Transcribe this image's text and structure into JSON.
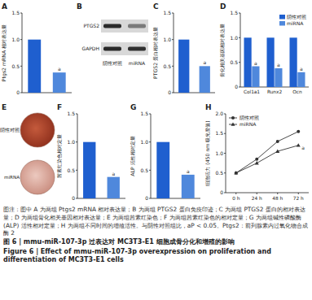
{
  "chart_data": [
    {
      "type": "bar",
      "title": "A",
      "ylabel": "Ptgs2 mRNA 相对表达量",
      "categories": [
        null,
        null
      ],
      "values": [
        1.0,
        0.38
      ],
      "colors": [
        "#1f5fcf",
        "#4f88dc"
      ],
      "significance": [
        null,
        "a"
      ],
      "ylim": [
        0,
        1.5
      ],
      "yticks": [
        0,
        0.5,
        {
          "value": 1,
          "label": "1.0"
        },
        1.5
      ],
      "tick_labels": "y"
    },
    {
      "type": "bar",
      "title": "C",
      "ylabel": "PTGS2 蛋白相对表达量",
      "categories": [
        null,
        null
      ],
      "values": [
        1.0,
        0.5
      ],
      "colors": [
        "#1f5fcf",
        "#4f88dc"
      ],
      "significance": [
        null,
        "a"
      ],
      "ylim": [
        0,
        1.5
      ],
      "yticks": [
        0,
        0.5,
        {
          "value": 1,
          "label": "1.0"
        },
        1.5
      ],
      "tick_labels": "y"
    },
    {
      "type": "bar",
      "title": "D",
      "ylabel": "骨化相关基因相对表达量",
      "categories": [
        "Col1a1",
        "Runx2",
        "Ocn"
      ],
      "series": [
        {
          "name": "阴性对照",
          "color": "#1f5fcf",
          "values": [
            1.0,
            1.0,
            1.0
          ]
        },
        {
          "name": "miRNA",
          "color": "#4f88dc",
          "values": [
            0.42,
            0.38,
            0.3
          ],
          "significance": [
            "a",
            "a",
            "a"
          ]
        }
      ],
      "legend": "upper right",
      "ylim": [
        0,
        1.5
      ],
      "yticks": [
        0,
        0.5,
        {
          "value": 1,
          "label": "1.0"
        },
        1.5
      ]
    },
    {
      "type": "bar",
      "title": "F",
      "ylabel": "茜素红染色相对定量",
      "categories": [
        null,
        null
      ],
      "values": [
        1.0,
        0.38
      ],
      "colors": [
        "#1f5fcf",
        "#4f88dc"
      ],
      "significance": [
        null,
        "a"
      ],
      "ylim": [
        0,
        1.5
      ],
      "yticks": [
        0,
        0.5,
        {
          "value": 1,
          "label": "1.0"
        },
        1.5
      ],
      "tick_labels": "y"
    },
    {
      "type": "bar",
      "title": "G",
      "ylabel": "ALP 活性相对定量",
      "categories": [
        null,
        null
      ],
      "values": [
        1.0,
        0.42
      ],
      "colors": [
        "#1f5fcf",
        "#4f88dc"
      ],
      "significance": [
        null,
        "a"
      ],
      "ylim": [
        0,
        1.5
      ],
      "yticks": [
        0,
        0.5,
        {
          "value": 1,
          "label": "1.0"
        },
        1.5
      ],
      "tick_labels": "y"
    },
    {
      "type": "line",
      "title": "H",
      "ylabel": "细胞活力 (450 nm 吸光度值)",
      "categories": [
        "0 h",
        "24 h",
        "48 h",
        "72 h"
      ],
      "series": [
        {
          "name": "阴性对照",
          "color": "#333333",
          "marker": "circle",
          "values": [
            0.5,
            0.85,
            1.3,
            1.55
          ]
        },
        {
          "name": "miRNA",
          "color": "#333333",
          "marker": "triangle",
          "values": [
            0.5,
            0.75,
            1.05,
            1.2
          ],
          "significance": [
            null,
            null,
            null,
            "a"
          ]
        }
      ],
      "legend": "upper left",
      "ylim": [
        0,
        2
      ],
      "yticks": [
        0,
        0.5,
        {
          "value": 1,
          "label": "1.0"
        },
        1.5,
        {
          "value": 2,
          "label": "2.0"
        }
      ]
    }
  ],
  "blot": {
    "title": "B",
    "bands": [
      "PTGS2",
      "GAPDH"
    ],
    "groups": [
      "阴性对照",
      "miRNA"
    ]
  },
  "stain": {
    "title": "E",
    "groups": [
      "阴性对照",
      "miRNA"
    ]
  },
  "caption": {
    "note": "图注：图中 A 为两组 Ptgs2 mRNA 相对表达量；B 为两组 PTGS2 蛋白免疫印迹；C 为两组 PTGS2 蛋白的相对表达量；D 为两组骨化相关基因相对表达量；E 为两组茜素红染色；F 为两组茜素红染色的相对定量；G 为两组碱性磷酸酶 (ALP) 活性相对定量；H 为两组不同时间的增殖活性。与阴性对照组比，aP < 0.05。Ptgs2：前列腺素内过氧化物合成酶 2",
    "title_cn": "图 6 | mmu-miR-107-3p 过表达对 MC3T3-E1 细胞成骨分化和增殖的影响",
    "title_en": "Figure 6 | Effect of mmu-miR-107-3p overexpression on proliferation and differentiation of MC3T3-E1 cells"
  }
}
